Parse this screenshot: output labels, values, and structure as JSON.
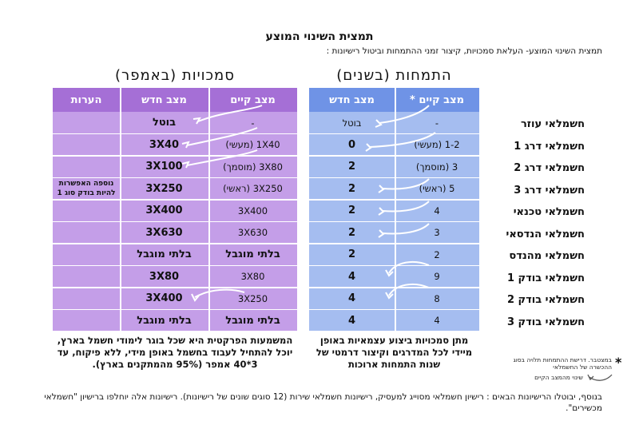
{
  "title": "תמצית השינוי המוצע",
  "subtitle": "תמצית השינוי המוצע- העלאת סמכויות, קיצור זמני ההתמחות וביטול רישיונות :",
  "authority_section": {
    "title": "סמכויות (באמפר)",
    "headers": {
      "notes": "הערות",
      "new": "מצב חדש",
      "current": "מצב קיים"
    },
    "rows": [
      {
        "notes": "",
        "new": "בוטל",
        "current": "-"
      },
      {
        "notes": "",
        "new": "3X40",
        "current": "1X40 (מעשי)"
      },
      {
        "notes": "",
        "new": "3X100",
        "current": "3X80 (מוסמך)"
      },
      {
        "notes": "נוספה האפשרות להיות בודק סוג 1",
        "new": "3X250",
        "current": "3X250 (ראשי)"
      },
      {
        "notes": "",
        "new": "3X400",
        "current": "3X400"
      },
      {
        "notes": "",
        "new": "3X630",
        "current": "3X630"
      },
      {
        "notes": "",
        "new": "בלתי מוגבל",
        "current": "בלתי מוגבל"
      },
      {
        "notes": "",
        "new": "3X80",
        "current": "3X80"
      },
      {
        "notes": "",
        "new": "3X400",
        "current": "3X250"
      },
      {
        "notes": "",
        "new": "בלתי מוגבל",
        "current": "בלתי מוגבל"
      }
    ],
    "caption": "המשמעות הפרקטית היא שכל בוגר לימודי חשמל בארץ, יוכל להתחיל לעבוד בחשמל באופן מידי, ללא פיקוח, עד 3*40 אמפר (95% מהמתקנים בארץ)."
  },
  "internship_section": {
    "title": "התמחות (בשנים)",
    "headers": {
      "new": "מצב חדש",
      "current": "מצב קיים *"
    },
    "rows": [
      {
        "new": "בוטל",
        "current": "-"
      },
      {
        "new": "0",
        "current": "1-2 (מעשי)"
      },
      {
        "new": "2",
        "current": "3 (מוסמך)"
      },
      {
        "new": "2",
        "current": "5 (ראשי)"
      },
      {
        "new": "2",
        "current": "4"
      },
      {
        "new": "2",
        "current": "3"
      },
      {
        "new": "2",
        "current": "2"
      },
      {
        "new": "4",
        "current": "9"
      },
      {
        "new": "4",
        "current": "8"
      },
      {
        "new": "4",
        "current": "4"
      }
    ],
    "caption": "מתן סמכויות ביצוע עצמאיות באופן מיידי לכל המדרגים וקיצור דרמטי של שנות התמחות ארוכות"
  },
  "roles": [
    "חשמלאי עוזר",
    "חשמלאי דרג 1",
    "חשמלאי דרג 2",
    "חשמלאי דרג 3",
    "חשמלאי טכנאי",
    "חשמלאי הנדסאי",
    "חשמלאי מהנדס",
    "חשמלאי בודק 1",
    "חשמלאי בודק 2",
    "חשמלאי בודק 3"
  ],
  "legend": {
    "star": "*",
    "star_note": "במצטבר. דרישת ההתמחות תלויה בסוג ההכשרה של החשמלאי",
    "arrow_note": "שינוי מהמצב הקיים"
  },
  "footer": "בנוסף, יבוטלו הרישיונות הבאים : רישיון חשמלאי מסוייג למעסיק, רישיונות חשמלאי שירות (12 סוגים שונים של רישיונות). רישיונות אלה יוחלפו ברישיון \"חשמלאי מכשירים\".",
  "colors": {
    "authority_bg": "#c49ee8",
    "authority_header": "#a56fd6",
    "internship_bg": "#a5bdf0",
    "internship_header": "#6f93e6"
  }
}
